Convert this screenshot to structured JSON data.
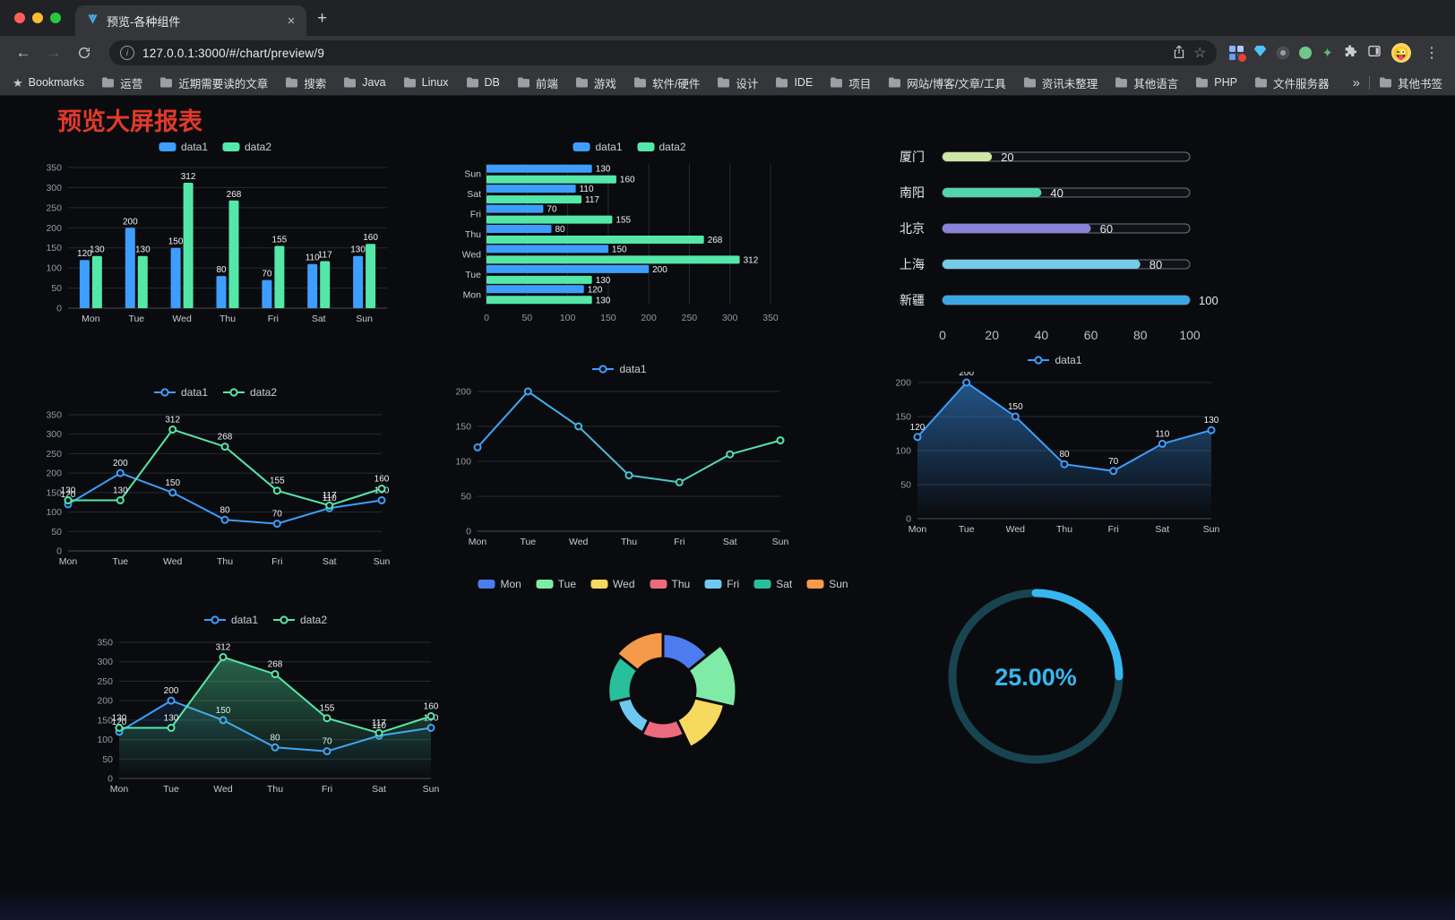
{
  "browser": {
    "tab_title": "预览-各种组件",
    "url": "127.0.0.1:3000/#/chart/preview/9",
    "bookmarks": [
      "Bookmarks",
      "运营",
      "近期需要读的文章",
      "搜索",
      "Java",
      "Linux",
      "DB",
      "前端",
      "游戏",
      "软件/硬件",
      "设计",
      "IDE",
      "项目",
      "网站/博客/文章/工具",
      "资讯未整理",
      "其他语言",
      "PHP",
      "文件服务器"
    ],
    "other_bookmarks": "其他书签"
  },
  "icons": {
    "back": "←",
    "forward": "→",
    "close": "×",
    "plus": "+",
    "info": "i",
    "star": "☆",
    "overflow": "»",
    "kebab": "⋮",
    "avatar": "😜",
    "spark": "✦"
  },
  "page": {
    "title": "预览大屏报表",
    "title_color": "#e13a2a",
    "background": "#0a0b0e"
  },
  "chart_data": [
    {
      "id": "grouped-bar",
      "type": "bar",
      "categories": [
        "Mon",
        "Tue",
        "Wed",
        "Thu",
        "Fri",
        "Sat",
        "Sun"
      ],
      "series": [
        {
          "name": "data1",
          "color": "#3D9EFF",
          "values": [
            120,
            200,
            150,
            80,
            70,
            110,
            130
          ]
        },
        {
          "name": "data2",
          "color": "#54E8A8",
          "values": [
            130,
            130,
            312,
            268,
            155,
            117,
            160
          ]
        }
      ],
      "ylim": [
        0,
        350
      ],
      "ytick": 50,
      "value_labels": true,
      "legend_position": "top",
      "grid": true
    },
    {
      "id": "horizontal-bar",
      "type": "hbar",
      "categories": [
        "Mon",
        "Tue",
        "Wed",
        "Thu",
        "Fri",
        "Sat",
        "Sun"
      ],
      "series": [
        {
          "name": "data1",
          "color": "#3D9EFF",
          "values": [
            120,
            200,
            150,
            80,
            70,
            110,
            130
          ]
        },
        {
          "name": "data2",
          "color": "#54E8A8",
          "values": [
            130,
            130,
            312,
            268,
            155,
            117,
            160
          ]
        }
      ],
      "xlim": [
        0,
        350
      ],
      "xtick": 50,
      "value_labels": true,
      "legend_position": "top",
      "grid": true
    },
    {
      "id": "city-progress",
      "type": "progress",
      "max": 100,
      "items": [
        {
          "label": "厦门",
          "value": 20,
          "color": "#CFE7A5"
        },
        {
          "label": "南阳",
          "value": 40,
          "color": "#52D6A9"
        },
        {
          "label": "北京",
          "value": 60,
          "color": "#8A82D8"
        },
        {
          "label": "上海",
          "value": 80,
          "color": "#76CBE8"
        },
        {
          "label": "新疆",
          "value": 100,
          "color": "#3AA7E4"
        }
      ],
      "axis_ticks": [
        0,
        20,
        40,
        60,
        80,
        100
      ]
    },
    {
      "id": "multi-line",
      "type": "line",
      "categories": [
        "Mon",
        "Tue",
        "Wed",
        "Thu",
        "Fri",
        "Sat",
        "Sun"
      ],
      "series": [
        {
          "name": "data1",
          "color": "#3D9EFF",
          "values": [
            120,
            200,
            150,
            80,
            70,
            110,
            130
          ]
        },
        {
          "name": "data2",
          "color": "#54E8A8",
          "values": [
            130,
            130,
            312,
            268,
            155,
            117,
            160
          ]
        }
      ],
      "ylim": [
        0,
        350
      ],
      "ytick": 50,
      "value_labels": true,
      "legend_position": "top",
      "grid": true
    },
    {
      "id": "gradient-line",
      "type": "line",
      "categories": [
        "Mon",
        "Tue",
        "Wed",
        "Thu",
        "Fri",
        "Sat",
        "Sun"
      ],
      "series": [
        {
          "name": "data1",
          "gradient": [
            "#3D9EFF",
            "#54E8A8"
          ],
          "values": [
            120,
            200,
            150,
            80,
            70,
            110,
            130
          ]
        }
      ],
      "ylim": [
        0,
        200
      ],
      "ytick": 50,
      "value_labels": false,
      "legend_position": "top",
      "grid": true
    },
    {
      "id": "area-line",
      "type": "line",
      "categories": [
        "Mon",
        "Tue",
        "Wed",
        "Thu",
        "Fri",
        "Sat",
        "Sun"
      ],
      "series": [
        {
          "name": "data1",
          "color": "#3D9EFF",
          "values": [
            120,
            200,
            150,
            80,
            70,
            110,
            130
          ],
          "area": true,
          "area_opacity": 0.5
        }
      ],
      "ylim": [
        0,
        200
      ],
      "ytick": 50,
      "value_labels": true,
      "legend_position": "top",
      "grid": true
    },
    {
      "id": "multi-line-area",
      "type": "line",
      "categories": [
        "Mon",
        "Tue",
        "Wed",
        "Thu",
        "Fri",
        "Sat",
        "Sun"
      ],
      "series": [
        {
          "name": "data1",
          "color": "#3D9EFF",
          "values": [
            120,
            200,
            150,
            80,
            70,
            110,
            130
          ],
          "area": true,
          "area_opacity": 0.22
        },
        {
          "name": "data2",
          "color": "#54E8A8",
          "values": [
            130,
            130,
            312,
            268,
            155,
            117,
            160
          ],
          "area": true,
          "area_opacity": 0.45
        }
      ],
      "ylim": [
        0,
        350
      ],
      "ytick": 50,
      "value_labels": true,
      "legend_position": "top",
      "grid": true
    },
    {
      "id": "rose-pie",
      "type": "pie",
      "rose": true,
      "inner_radius": 36,
      "legend_position": "top",
      "slices": [
        {
          "label": "Mon",
          "value": 120,
          "color": "#4D7CF0"
        },
        {
          "label": "Tue",
          "value": 200,
          "color": "#7FEBA6"
        },
        {
          "label": "Wed",
          "value": 150,
          "color": "#F6D95F"
        },
        {
          "label": "Thu",
          "value": 80,
          "color": "#EC6A7D"
        },
        {
          "label": "Fri",
          "value": 70,
          "color": "#6EC9F2"
        },
        {
          "label": "Sat",
          "value": 110,
          "color": "#27C09A"
        },
        {
          "label": "Sun",
          "value": 130,
          "color": "#F59A49"
        }
      ]
    },
    {
      "id": "gauge",
      "type": "gauge",
      "value": 25,
      "max": 100,
      "label": "25.00%",
      "color": "#38B6F0",
      "track_color": "#17444F"
    }
  ]
}
